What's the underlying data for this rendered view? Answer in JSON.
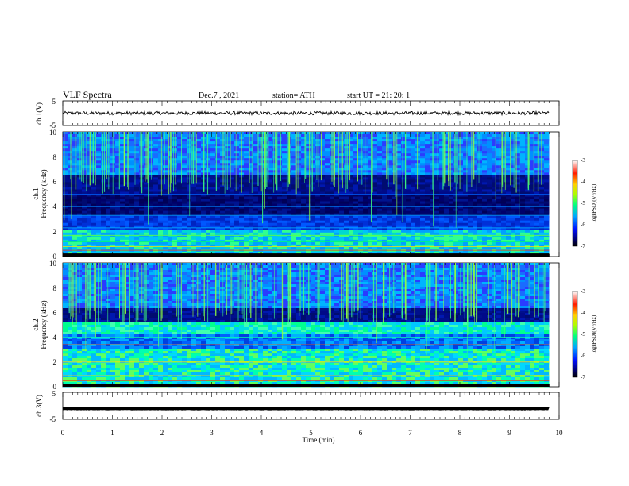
{
  "header": {
    "title": "VLF  Spectra",
    "date": "Dec.7  , 2021",
    "station": "station= ATH",
    "start": "start  UT  =    21: 20: 1"
  },
  "chart_data": [
    {
      "type": "line",
      "name": "ch1-waveform",
      "ylabel": "ch.1(V)",
      "ylim": [
        -5,
        5
      ],
      "yticks": [
        "5",
        "-5"
      ],
      "xlim": [
        0,
        10
      ],
      "x_extent": [
        0,
        9.8
      ],
      "baseline": 0
    },
    {
      "type": "heatmap",
      "name": "ch1-spectrogram",
      "ylabel_top": "ch.1",
      "ylabel": "Frequency  (kHz)",
      "ylim": [
        0,
        10
      ],
      "yticks": [
        "0",
        "2",
        "4",
        "6",
        "8",
        "10"
      ],
      "xlim": [
        0,
        10
      ],
      "x_extent": [
        0,
        9.8
      ],
      "colorbar": {
        "label": "log(PSD)(V²/Hz)",
        "range": [
          -7,
          -3
        ],
        "ticks": [
          "-3",
          "-4",
          "-5",
          "-6",
          "-7"
        ]
      }
    },
    {
      "type": "heatmap",
      "name": "ch2-spectrogram",
      "ylabel_top": "ch.2",
      "ylabel": "Frequency  (kHz)",
      "ylim": [
        0,
        10
      ],
      "yticks": [
        "0",
        "2",
        "4",
        "6",
        "8",
        "10"
      ],
      "xlim": [
        0,
        10
      ],
      "x_extent": [
        0,
        9.8
      ],
      "colorbar": {
        "label": "log(PSD)(V²/Hz)",
        "range": [
          -7,
          -3
        ],
        "ticks": [
          "-3",
          "-4",
          "-5",
          "-6",
          "-7"
        ]
      }
    },
    {
      "type": "line",
      "name": "ch3-waveform",
      "ylabel": "ch.3(V)",
      "ylim": [
        -5,
        5
      ],
      "yticks": [
        "5",
        "-5"
      ],
      "xlim": [
        0,
        10
      ],
      "x_extent": [
        0,
        9.8
      ],
      "baseline": -1
    }
  ],
  "xaxis": {
    "label": "Time  (min)",
    "ticks": [
      "0",
      "1",
      "2",
      "3",
      "4",
      "5",
      "6",
      "7",
      "8",
      "9",
      "10"
    ]
  }
}
